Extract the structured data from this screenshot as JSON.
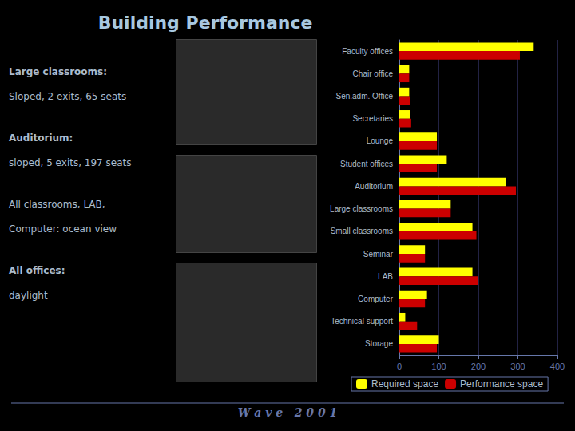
{
  "chart_data": {
    "type": "bar",
    "orientation": "horizontal",
    "title": "Building Performance",
    "categories": [
      "Storage",
      "Technical support",
      "Computer",
      "LAB",
      "Seminar",
      "Small classrooms",
      "Large classrooms",
      "Auditorium",
      "Student offices",
      "Lounge",
      "Secretaries",
      "Sen.adm. Office",
      "Chair office",
      "Faculty offices"
    ],
    "series": [
      {
        "name": "Required space",
        "color": "#ffff00",
        "values": [
          100,
          15,
          70,
          185,
          65,
          185,
          130,
          270,
          120,
          95,
          28,
          25,
          25,
          340
        ]
      },
      {
        "name": "Performance space",
        "color": "#cc0000",
        "values": [
          95,
          45,
          65,
          200,
          65,
          195,
          130,
          295,
          95,
          95,
          30,
          28,
          25,
          305
        ]
      }
    ],
    "xlim": [
      0,
      400
    ],
    "xticks": [
      0,
      100,
      200,
      300,
      400
    ],
    "grid": true,
    "legend": "bottom",
    "annotations": [
      [
        "Large classrooms:",
        "Sloped, 2 exits, 65 seats"
      ],
      [
        "Auditorium:",
        "sloped, 5 exits, 197 seats"
      ],
      [
        "All classrooms, LAB,",
        "Computer: ocean view"
      ],
      [
        "All offices:",
        "daylight"
      ]
    ],
    "footer": "W a v e   2 0 0 1"
  }
}
